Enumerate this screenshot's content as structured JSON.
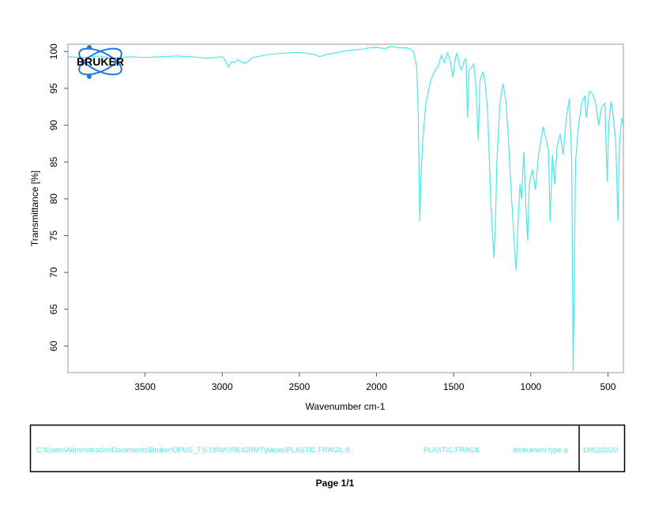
{
  "chart_data": {
    "type": "line",
    "xlabel": "Wavenumber cm-1",
    "ylabel": "Transmittance [%]",
    "xlim": [
      4000,
      400
    ],
    "ylim": [
      56.4,
      101
    ],
    "xticks": [
      3500,
      3000,
      2500,
      2000,
      1500,
      1000,
      500
    ],
    "yticks": [
      60,
      65,
      70,
      75,
      80,
      85,
      90,
      95,
      100
    ],
    "x": [
      4000,
      3900,
      3800,
      3700,
      3600,
      3500,
      3400,
      3300,
      3200,
      3100,
      3050,
      3000,
      2980,
      2960,
      2940,
      2920,
      2900,
      2870,
      2850,
      2800,
      2700,
      2600,
      2500,
      2400,
      2370,
      2350,
      2330,
      2300,
      2200,
      2100,
      2050,
      2000,
      1950,
      1900,
      1850,
      1800,
      1780,
      1760,
      1750,
      1740,
      1730,
      1720,
      1710,
      1700,
      1680,
      1650,
      1620,
      1600,
      1580,
      1560,
      1540,
      1520,
      1505,
      1490,
      1480,
      1460,
      1450,
      1430,
      1420,
      1410,
      1400,
      1385,
      1370,
      1355,
      1340,
      1330,
      1310,
      1295,
      1280,
      1260,
      1240,
      1230,
      1220,
      1200,
      1180,
      1160,
      1145,
      1130,
      1110,
      1095,
      1080,
      1070,
      1060,
      1045,
      1030,
      1020,
      1010,
      990,
      970,
      950,
      920,
      900,
      885,
      875,
      860,
      845,
      830,
      810,
      790,
      770,
      750,
      735,
      725,
      718,
      710,
      690,
      670,
      650,
      640,
      620,
      600,
      580,
      560,
      540,
      520,
      505,
      495,
      480,
      470,
      450,
      435,
      425,
      410,
      400
    ],
    "color": "#4de6e6",
    "values": [
      99.3,
      99.2,
      99.4,
      99.1,
      99.3,
      99.2,
      99.3,
      99.4,
      99.3,
      99.1,
      99.2,
      99.3,
      98.8,
      97.9,
      98.6,
      98.5,
      98.9,
      98.5,
      98.4,
      99.2,
      99.6,
      99.8,
      99.9,
      99.6,
      99.3,
      99.4,
      99.6,
      99.7,
      100.1,
      100.3,
      100.5,
      100.6,
      100.4,
      100.7,
      100.5,
      100.5,
      100.3,
      100.0,
      99.0,
      98.0,
      92.0,
      76.9,
      84.0,
      88.0,
      93.0,
      96.0,
      97.5,
      98.0,
      99.5,
      98.5,
      99.8,
      98.6,
      96.5,
      99.0,
      99.8,
      98.0,
      97.5,
      98.8,
      99.0,
      91.0,
      97.5,
      97.8,
      98.3,
      95.0,
      87.9,
      96.0,
      97.3,
      95.5,
      92.0,
      80.0,
      72.0,
      76.0,
      85.0,
      93.0,
      95.7,
      93.0,
      88.0,
      82.0,
      75.0,
      70.3,
      78.0,
      82.0,
      80.0,
      86.4,
      78.0,
      74.3,
      82.0,
      84.0,
      81.2,
      86.0,
      89.8,
      88.0,
      86.5,
      76.9,
      86.0,
      82.0,
      87.0,
      88.8,
      86.0,
      91.0,
      93.6,
      85.0,
      56.6,
      70.0,
      85.0,
      90.0,
      93.0,
      94.0,
      91.0,
      94.6,
      94.3,
      93.0,
      90.0,
      92.5,
      93.0,
      82.3,
      90.0,
      93.3,
      92.0,
      88.0,
      77.0,
      88.0,
      91.0,
      90.0
    ]
  },
  "logo_text": "BRUKER",
  "footer": {
    "file": "C:\\Users\\Administrador\\Documents\\Bruker\\OPUS_7.5.18\\WORK\\GRMT\\jfarjas\\PLASTIC FRAGIL.0",
    "sample": "PLASTIC FRAGIL",
    "instrument": "Instrument type a",
    "date": "19/02/2020"
  },
  "page_label": "Page 1/1"
}
